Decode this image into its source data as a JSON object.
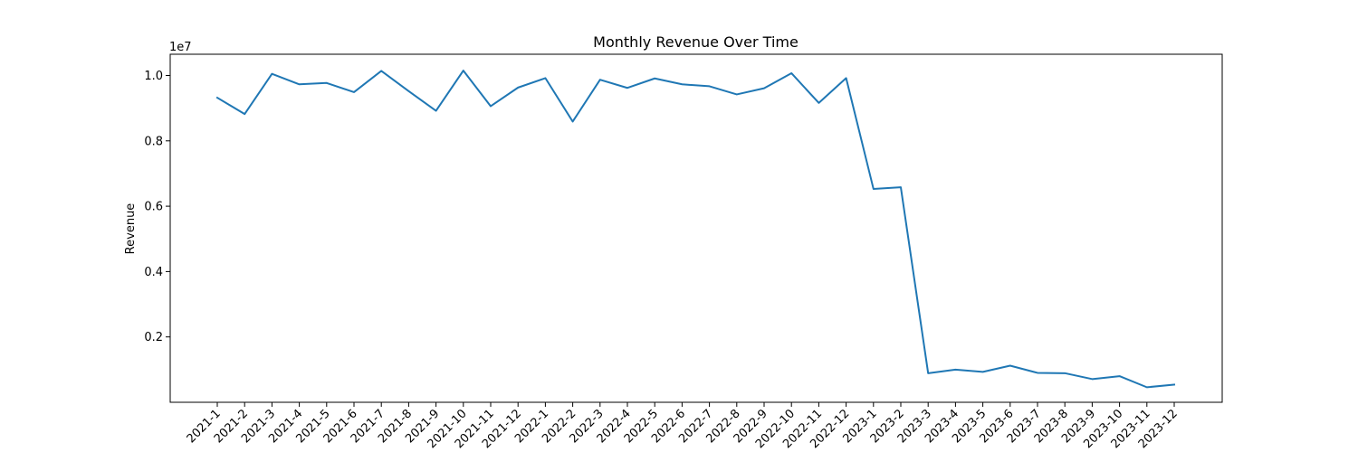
{
  "chart_data": {
    "type": "line",
    "title": "Monthly Revenue Over Time",
    "xlabel": "",
    "ylabel": "Revenue",
    "y_offset_label": "1e7",
    "y_scale": 10000000,
    "ylim": [
      0,
      10650000
    ],
    "y_ticks": [
      2000000,
      4000000,
      6000000,
      8000000,
      10000000
    ],
    "y_tick_labels": [
      "0.2",
      "0.4",
      "0.6",
      "0.8",
      "1.0"
    ],
    "grid": false,
    "legend": "none",
    "line_color": "#1f77b4",
    "categories": [
      "2021-1",
      "2021-2",
      "2021-3",
      "2021-4",
      "2021-5",
      "2021-6",
      "2021-7",
      "2021-8",
      "2021-9",
      "2021-10",
      "2021-11",
      "2021-12",
      "2022-1",
      "2022-2",
      "2022-3",
      "2022-4",
      "2022-5",
      "2022-6",
      "2022-7",
      "2022-8",
      "2022-9",
      "2022-10",
      "2022-11",
      "2022-12",
      "2023-1",
      "2023-2",
      "2023-3",
      "2023-4",
      "2023-5",
      "2023-6",
      "2023-7",
      "2023-8",
      "2023-9",
      "2023-10",
      "2023-11",
      "2023-12"
    ],
    "series": [
      {
        "values": [
          9320000,
          8820000,
          10050000,
          9730000,
          9770000,
          9490000,
          10140000,
          9520000,
          8920000,
          10150000,
          9060000,
          9630000,
          9920000,
          8590000,
          9870000,
          9620000,
          9910000,
          9730000,
          9670000,
          9420000,
          9610000,
          10070000,
          9160000,
          9920000,
          6530000,
          6580000,
          890000,
          1000000,
          930000,
          1120000,
          900000,
          890000,
          710000,
          800000,
          460000,
          540000
        ]
      }
    ]
  }
}
